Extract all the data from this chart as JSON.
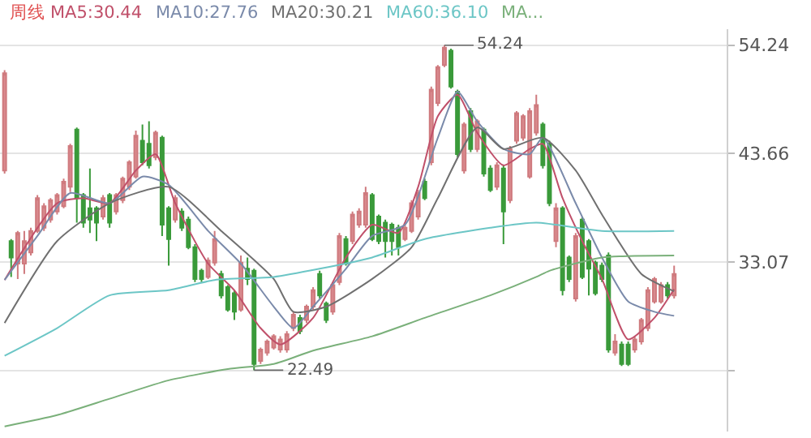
{
  "chart_data": {
    "type": "candlestick",
    "categories": [
      null,
      null,
      null,
      null,
      null,
      null,
      null,
      null,
      null,
      null,
      null,
      null,
      null,
      null,
      null,
      null,
      null,
      null,
      null,
      null,
      null,
      null,
      null,
      null,
      null,
      null,
      null,
      null,
      null,
      null,
      null,
      null,
      null,
      null,
      null,
      null,
      null,
      null,
      null,
      null,
      null,
      null,
      null,
      null,
      null,
      null,
      null,
      null,
      null,
      null,
      null,
      null,
      null,
      null,
      null,
      null,
      null,
      null,
      null,
      null,
      null,
      null,
      null,
      null,
      null,
      null,
      null,
      null,
      null,
      null,
      null,
      null,
      null,
      null,
      null,
      null,
      null,
      null,
      null,
      null,
      null,
      null,
      null,
      null,
      null,
      null,
      null,
      null,
      null,
      null,
      null,
      null,
      null,
      null,
      null,
      null,
      null,
      null,
      null,
      null,
      null,
      null,
      null
    ],
    "ohlc": [
      [
        42.0,
        51.8,
        41.7,
        51.5
      ],
      [
        35.1,
        35.3,
        31.6,
        33.5
      ],
      [
        32.9,
        36.1,
        31.4,
        35.9
      ],
      [
        32.9,
        36.1,
        31.9,
        35.1
      ],
      [
        34.0,
        36.4,
        33.7,
        36.1
      ],
      [
        36.1,
        39.6,
        35.9,
        39.3
      ],
      [
        36.4,
        38.8,
        36.1,
        38.5
      ],
      [
        37.2,
        39.3,
        36.9,
        39.1
      ],
      [
        38.0,
        39.8,
        37.7,
        39.6
      ],
      [
        38.5,
        41.2,
        38.3,
        40.9
      ],
      [
        40.4,
        44.6,
        39.9,
        44.4
      ],
      [
        46.0,
        46.2,
        36.9,
        39.3
      ],
      [
        39.6,
        39.8,
        36.4,
        36.9
      ],
      [
        38.3,
        42.2,
        35.9,
        37.2
      ],
      [
        38.3,
        38.5,
        35.1,
        36.9
      ],
      [
        37.5,
        39.6,
        37.2,
        39.3
      ],
      [
        39.6,
        39.8,
        36.4,
        36.9
      ],
      [
        38.0,
        39.8,
        37.7,
        39.6
      ],
      [
        39.1,
        41.4,
        38.8,
        41.2
      ],
      [
        40.4,
        43.0,
        40.1,
        42.8
      ],
      [
        41.4,
        45.9,
        41.2,
        45.4
      ],
      [
        44.9,
        46.5,
        42.5,
        42.8
      ],
      [
        44.6,
        46.8,
        42.2,
        42.5
      ],
      [
        43.3,
        45.9,
        43.0,
        45.7
      ],
      [
        45.2,
        45.4,
        35.6,
        36.7
      ],
      [
        38.3,
        38.5,
        32.7,
        35.3
      ],
      [
        37.2,
        39.6,
        36.9,
        39.3
      ],
      [
        38.0,
        38.3,
        36.1,
        36.4
      ],
      [
        37.2,
        37.5,
        34.3,
        34.5
      ],
      [
        34.5,
        34.8,
        31.1,
        31.4
      ],
      [
        32.2,
        32.4,
        31.1,
        31.4
      ],
      [
        31.6,
        33.5,
        31.4,
        33.2
      ],
      [
        33.0,
        36.1,
        32.7,
        35.3
      ],
      [
        31.9,
        32.2,
        29.5,
        29.8
      ],
      [
        30.6,
        30.8,
        28.2,
        28.4
      ],
      [
        30.0,
        30.3,
        27.4,
        28.2
      ],
      [
        28.4,
        33.7,
        28.2,
        33.0
      ],
      [
        32.4,
        33.5,
        30.8,
        31.4
      ],
      [
        32.2,
        32.4,
        22.49,
        23.1
      ],
      [
        23.4,
        24.7,
        23.1,
        24.5
      ],
      [
        24.2,
        25.5,
        23.9,
        25.3
      ],
      [
        24.7,
        26.0,
        24.5,
        25.8
      ],
      [
        24.5,
        25.8,
        24.2,
        25.5
      ],
      [
        24.5,
        26.3,
        24.2,
        26.0
      ],
      [
        26.6,
        28.2,
        26.3,
        27.9
      ],
      [
        27.6,
        27.9,
        26.0,
        26.3
      ],
      [
        27.4,
        28.9,
        27.1,
        28.7
      ],
      [
        28.7,
        30.6,
        28.4,
        30.3
      ],
      [
        31.9,
        32.2,
        29.5,
        29.8
      ],
      [
        29.0,
        29.2,
        27.1,
        27.4
      ],
      [
        28.2,
        31.1,
        27.9,
        30.8
      ],
      [
        31.1,
        35.9,
        30.8,
        35.6
      ],
      [
        35.3,
        35.6,
        32.7,
        32.9
      ],
      [
        35.1,
        38.0,
        34.8,
        37.7
      ],
      [
        36.7,
        38.3,
        36.4,
        38.0
      ],
      [
        36.7,
        40.4,
        36.4,
        39.8
      ],
      [
        39.6,
        39.8,
        35.1,
        35.3
      ],
      [
        37.5,
        37.7,
        34.8,
        35.1
      ],
      [
        36.9,
        37.2,
        33.5,
        35.1
      ],
      [
        36.7,
        36.9,
        33.7,
        35.1
      ],
      [
        36.4,
        36.7,
        33.7,
        34.5
      ],
      [
        35.3,
        36.7,
        35.1,
        36.4
      ],
      [
        36.1,
        39.1,
        35.9,
        38.8
      ],
      [
        37.5,
        40.1,
        37.2,
        39.8
      ],
      [
        40.9,
        41.2,
        39.1,
        39.3
      ],
      [
        42.8,
        50.2,
        42.5,
        49.9
      ],
      [
        48.6,
        52.3,
        48.3,
        52.1
      ],
      [
        52.3,
        54.24,
        52.1,
        54.0
      ],
      [
        53.7,
        53.9,
        50.0,
        50.2
      ],
      [
        49.7,
        49.9,
        43.3,
        43.6
      ],
      [
        42.0,
        46.7,
        41.7,
        46.5
      ],
      [
        47.8,
        48.1,
        43.8,
        44.1
      ],
      [
        44.1,
        47.0,
        43.8,
        46.8
      ],
      [
        46.0,
        46.2,
        41.4,
        41.7
      ],
      [
        42.2,
        42.5,
        39.9,
        40.1
      ],
      [
        40.4,
        42.8,
        40.1,
        42.5
      ],
      [
        42.2,
        42.5,
        34.8,
        38.0
      ],
      [
        39.1,
        44.4,
        38.8,
        44.1
      ],
      [
        44.9,
        47.8,
        44.6,
        47.6
      ],
      [
        45.2,
        47.5,
        44.9,
        47.3
      ],
      [
        41.4,
        48.1,
        41.2,
        47.8
      ],
      [
        45.7,
        49.4,
        45.4,
        48.4
      ],
      [
        46.5,
        46.7,
        42.2,
        42.5
      ],
      [
        44.6,
        44.9,
        38.5,
        38.8
      ],
      [
        35.1,
        38.8,
        34.5,
        38.3
      ],
      [
        38.3,
        38.5,
        29.8,
        30.3
      ],
      [
        33.5,
        33.7,
        31.1,
        31.4
      ],
      [
        29.5,
        35.9,
        29.2,
        35.6
      ],
      [
        37.2,
        37.5,
        31.4,
        31.6
      ],
      [
        35.1,
        35.3,
        29.8,
        32.4
      ],
      [
        33.0,
        33.2,
        29.8,
        30.0
      ],
      [
        32.7,
        33.0,
        31.1,
        31.4
      ],
      [
        33.7,
        34.0,
        24.2,
        24.5
      ],
      [
        24.2,
        26.0,
        23.9,
        25.3
      ],
      [
        25.0,
        25.3,
        22.9,
        23.1
      ],
      [
        25.0,
        25.3,
        22.9,
        23.1
      ],
      [
        24.5,
        25.8,
        24.2,
        25.5
      ],
      [
        25.3,
        27.6,
        25.0,
        27.4
      ],
      [
        26.6,
        30.6,
        26.3,
        30.3
      ],
      [
        29.2,
        31.6,
        29.0,
        31.4
      ],
      [
        29.2,
        31.1,
        29.0,
        30.8
      ],
      [
        30.8,
        31.1,
        29.5,
        29.8
      ],
      [
        29.8,
        32.7,
        29.5,
        31.9
      ]
    ],
    "series": [
      {
        "type": "line",
        "name": "MA5:30.44",
        "color": "#c0506a",
        "values": [
          31.3,
          null,
          null,
          null,
          null,
          null,
          null,
          null,
          38.8,
          null,
          null,
          null,
          39.3,
          null,
          null,
          null,
          38.8,
          null,
          null,
          null,
          42.0,
          null,
          null,
          43.6,
          null,
          null,
          38.8,
          null,
          null,
          null,
          null,
          32.9,
          null,
          null,
          null,
          30.3,
          null,
          null,
          null,
          26.6,
          null,
          null,
          25.0,
          null,
          null,
          null,
          null,
          27.6,
          null,
          null,
          null,
          null,
          33.5,
          null,
          null,
          null,
          36.7,
          null,
          null,
          null,
          35.9,
          null,
          null,
          40.4,
          null,
          null,
          47.3,
          null,
          null,
          49.4,
          null,
          null,
          45.7,
          null,
          null,
          null,
          42.5,
          null,
          null,
          null,
          44.1,
          null,
          44.6,
          null,
          null,
          39.3,
          null,
          null,
          35.1,
          null,
          null,
          31.4,
          null,
          null,
          null,
          25.5,
          null,
          null,
          null,
          27.6,
          null,
          null,
          30.4
        ]
      },
      {
        "type": "line",
        "name": "MA10:27.76",
        "color": "#7a8aaa",
        "values": [
          31.3,
          null,
          null,
          null,
          null,
          35.6,
          null,
          null,
          null,
          null,
          39.8,
          null,
          null,
          null,
          null,
          null,
          38.8,
          null,
          null,
          null,
          null,
          41.4,
          null,
          null,
          null,
          40.6,
          null,
          null,
          null,
          null,
          null,
          36.1,
          null,
          null,
          null,
          null,
          32.9,
          null,
          null,
          null,
          null,
          28.7,
          null,
          null,
          26.6,
          null,
          null,
          28.7,
          null,
          null,
          null,
          null,
          32.4,
          null,
          null,
          null,
          35.6,
          null,
          null,
          null,
          null,
          36.7,
          null,
          null,
          null,
          null,
          45.2,
          null,
          null,
          49.7,
          null,
          null,
          46.8,
          null,
          null,
          null,
          44.1,
          null,
          null,
          null,
          43.6,
          null,
          45.2,
          null,
          null,
          null,
          null,
          38.8,
          null,
          null,
          null,
          33.5,
          null,
          null,
          null,
          29.2,
          null,
          null,
          null,
          28.2,
          null,
          null,
          27.8
        ]
      },
      {
        "type": "line",
        "name": "MA20:30.21",
        "color": "#707070",
        "values": [
          27.1,
          null,
          null,
          null,
          null,
          null,
          null,
          null,
          35.1,
          null,
          null,
          null,
          null,
          null,
          null,
          null,
          38.8,
          null,
          null,
          null,
          null,
          null,
          null,
          null,
          null,
          40.4,
          null,
          null,
          null,
          null,
          null,
          null,
          null,
          36.1,
          null,
          null,
          null,
          null,
          null,
          null,
          null,
          31.4,
          null,
          null,
          28.2,
          null,
          null,
          null,
          null,
          28.7,
          null,
          null,
          null,
          null,
          null,
          null,
          31.4,
          null,
          null,
          null,
          null,
          null,
          34.5,
          null,
          null,
          null,
          39.3,
          null,
          null,
          null,
          null,
          null,
          46.2,
          null,
          null,
          null,
          44.1,
          null,
          null,
          null,
          null,
          null,
          45.2,
          null,
          null,
          null,
          null,
          42.0,
          null,
          null,
          null,
          37.7,
          null,
          null,
          null,
          null,
          null,
          31.9,
          null,
          null,
          null,
          null,
          30.2
        ]
      },
      {
        "type": "line",
        "name": "MA60:36.10",
        "color": "#6cc6c6",
        "values": [
          23.9,
          null,
          null,
          null,
          null,
          null,
          null,
          null,
          26.6,
          null,
          null,
          null,
          null,
          null,
          null,
          null,
          29.8,
          null,
          null,
          null,
          null,
          null,
          null,
          null,
          null,
          30.3,
          null,
          null,
          null,
          null,
          null,
          null,
          31.3,
          null,
          null,
          null,
          null,
          null,
          null,
          null,
          null,
          31.6,
          null,
          null,
          null,
          null,
          null,
          null,
          32.4,
          null,
          null,
          null,
          null,
          null,
          null,
          null,
          33.5,
          null,
          null,
          null,
          null,
          null,
          null,
          null,
          35.3,
          null,
          null,
          null,
          null,
          null,
          null,
          null,
          null,
          null,
          36.4,
          null,
          null,
          null,
          null,
          null,
          null,
          36.9,
          null,
          null,
          null,
          null,
          null,
          null,
          null,
          null,
          null,
          36.1,
          null,
          null,
          null,
          null,
          null,
          null,
          null,
          null,
          null,
          null,
          36.1
        ]
      },
      {
        "type": "line",
        "name": "MA...",
        "color": "#7ab07a",
        "values": [
          17.0,
          null,
          null,
          null,
          null,
          null,
          null,
          null,
          18.1,
          null,
          null,
          null,
          null,
          null,
          null,
          null,
          19.7,
          null,
          null,
          null,
          null,
          null,
          null,
          null,
          null,
          21.5,
          null,
          null,
          null,
          null,
          null,
          null,
          null,
          null,
          22.6,
          null,
          null,
          null,
          null,
          null,
          null,
          23.1,
          null,
          null,
          null,
          null,
          null,
          24.4,
          null,
          null,
          null,
          null,
          null,
          null,
          null,
          null,
          25.8,
          null,
          null,
          null,
          null,
          null,
          null,
          null,
          27.6,
          null,
          null,
          null,
          null,
          null,
          null,
          null,
          null,
          null,
          29.8,
          null,
          null,
          null,
          null,
          null,
          null,
          31.6,
          null,
          32.2,
          null,
          null,
          null,
          null,
          null,
          null,
          null,
          33.5,
          null,
          null,
          null,
          null,
          null,
          null,
          null,
          null,
          null,
          null,
          33.7
        ]
      }
    ],
    "ylim": [
      16.5,
      55.8
    ],
    "yticks": [
      {
        "value": 22.48,
        "label": null
      },
      33.07,
      43.66,
      54.24
    ],
    "grid": "y",
    "legend": false,
    "annotations": [
      "周线",
      "54.24",
      "22.49"
    ]
  }
}
